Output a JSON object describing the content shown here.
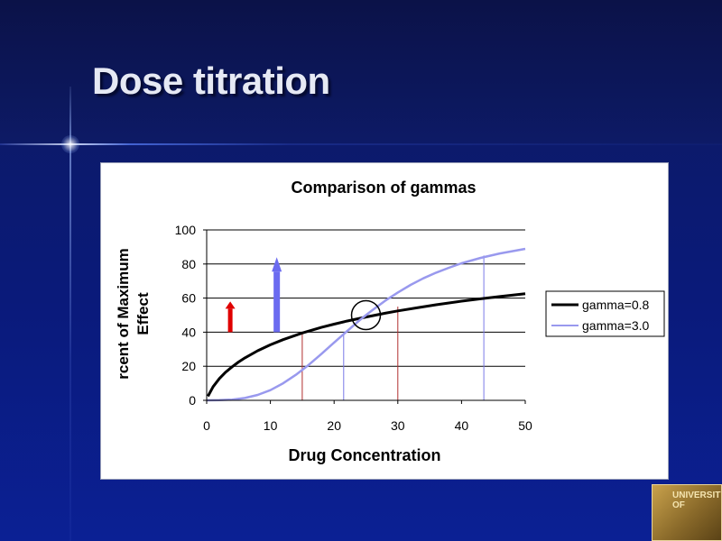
{
  "slide": {
    "title": "Dose titration"
  },
  "logo": {
    "text": "UNIVERSITY OF"
  },
  "chart_data": {
    "type": "line",
    "title": "Comparison of gammas",
    "xlabel": "Drug Concentration",
    "ylabel": "Percent of Maximum Effect",
    "ylabel_lines": [
      "rcent of Maximum",
      "Effect"
    ],
    "xlim": [
      0,
      50
    ],
    "ylim": [
      0,
      100
    ],
    "xticks": [
      0,
      10,
      20,
      30,
      40,
      50
    ],
    "yticks": [
      0,
      20,
      40,
      60,
      80,
      100
    ],
    "grid": "horizontal",
    "legend_position": "right",
    "series": [
      {
        "name": "gamma=0.8",
        "color": "#000000",
        "x": [
          0.2,
          1,
          2,
          3,
          4,
          5,
          6,
          8,
          10,
          12,
          15,
          18,
          20,
          22,
          25,
          28,
          30,
          33,
          36,
          40,
          43,
          46,
          50
        ],
        "y": [
          2.4,
          8.0,
          12.8,
          16.6,
          19.7,
          22.5,
          24.9,
          29.1,
          32.6,
          35.6,
          39.5,
          42.8,
          44.7,
          46.5,
          48.9,
          51.1,
          52.5,
          54.3,
          56.1,
          58.2,
          59.6,
          60.9,
          62.6
        ]
      },
      {
        "name": "gamma=3.0",
        "color": "#9999ee",
        "x": [
          0,
          2,
          4,
          6,
          8,
          10,
          12,
          14,
          16,
          18,
          20,
          22,
          24,
          25,
          26,
          28,
          30,
          32,
          34,
          36,
          38,
          40,
          43,
          46,
          50
        ],
        "y": [
          0,
          0.1,
          0.4,
          1.4,
          3.2,
          6.0,
          10.0,
          15.0,
          20.8,
          27.2,
          33.9,
          40.5,
          47.0,
          50.0,
          52.9,
          58.4,
          63.3,
          67.7,
          71.6,
          74.9,
          77.8,
          80.4,
          83.6,
          86.2,
          88.9
        ]
      }
    ],
    "annotations": {
      "red_arrow": {
        "x": 3.7,
        "y_from": 40,
        "y_to": 58,
        "color": "#e00000"
      },
      "blue_arrow": {
        "x": 11,
        "y_from": 40,
        "y_to": 84,
        "color": "#6b6bf0"
      },
      "red_droplines": [
        {
          "x": 15,
          "y": 40,
          "color": "#b03030"
        },
        {
          "x": 30,
          "y": 55,
          "color": "#b03030"
        }
      ],
      "blue_droplines": [
        {
          "x": 21.5,
          "y": 40,
          "color": "#7a7ae8"
        },
        {
          "x": 43.5,
          "y": 85,
          "color": "#7a7ae8"
        }
      ],
      "circle": {
        "x": 25,
        "y": 50
      }
    }
  }
}
